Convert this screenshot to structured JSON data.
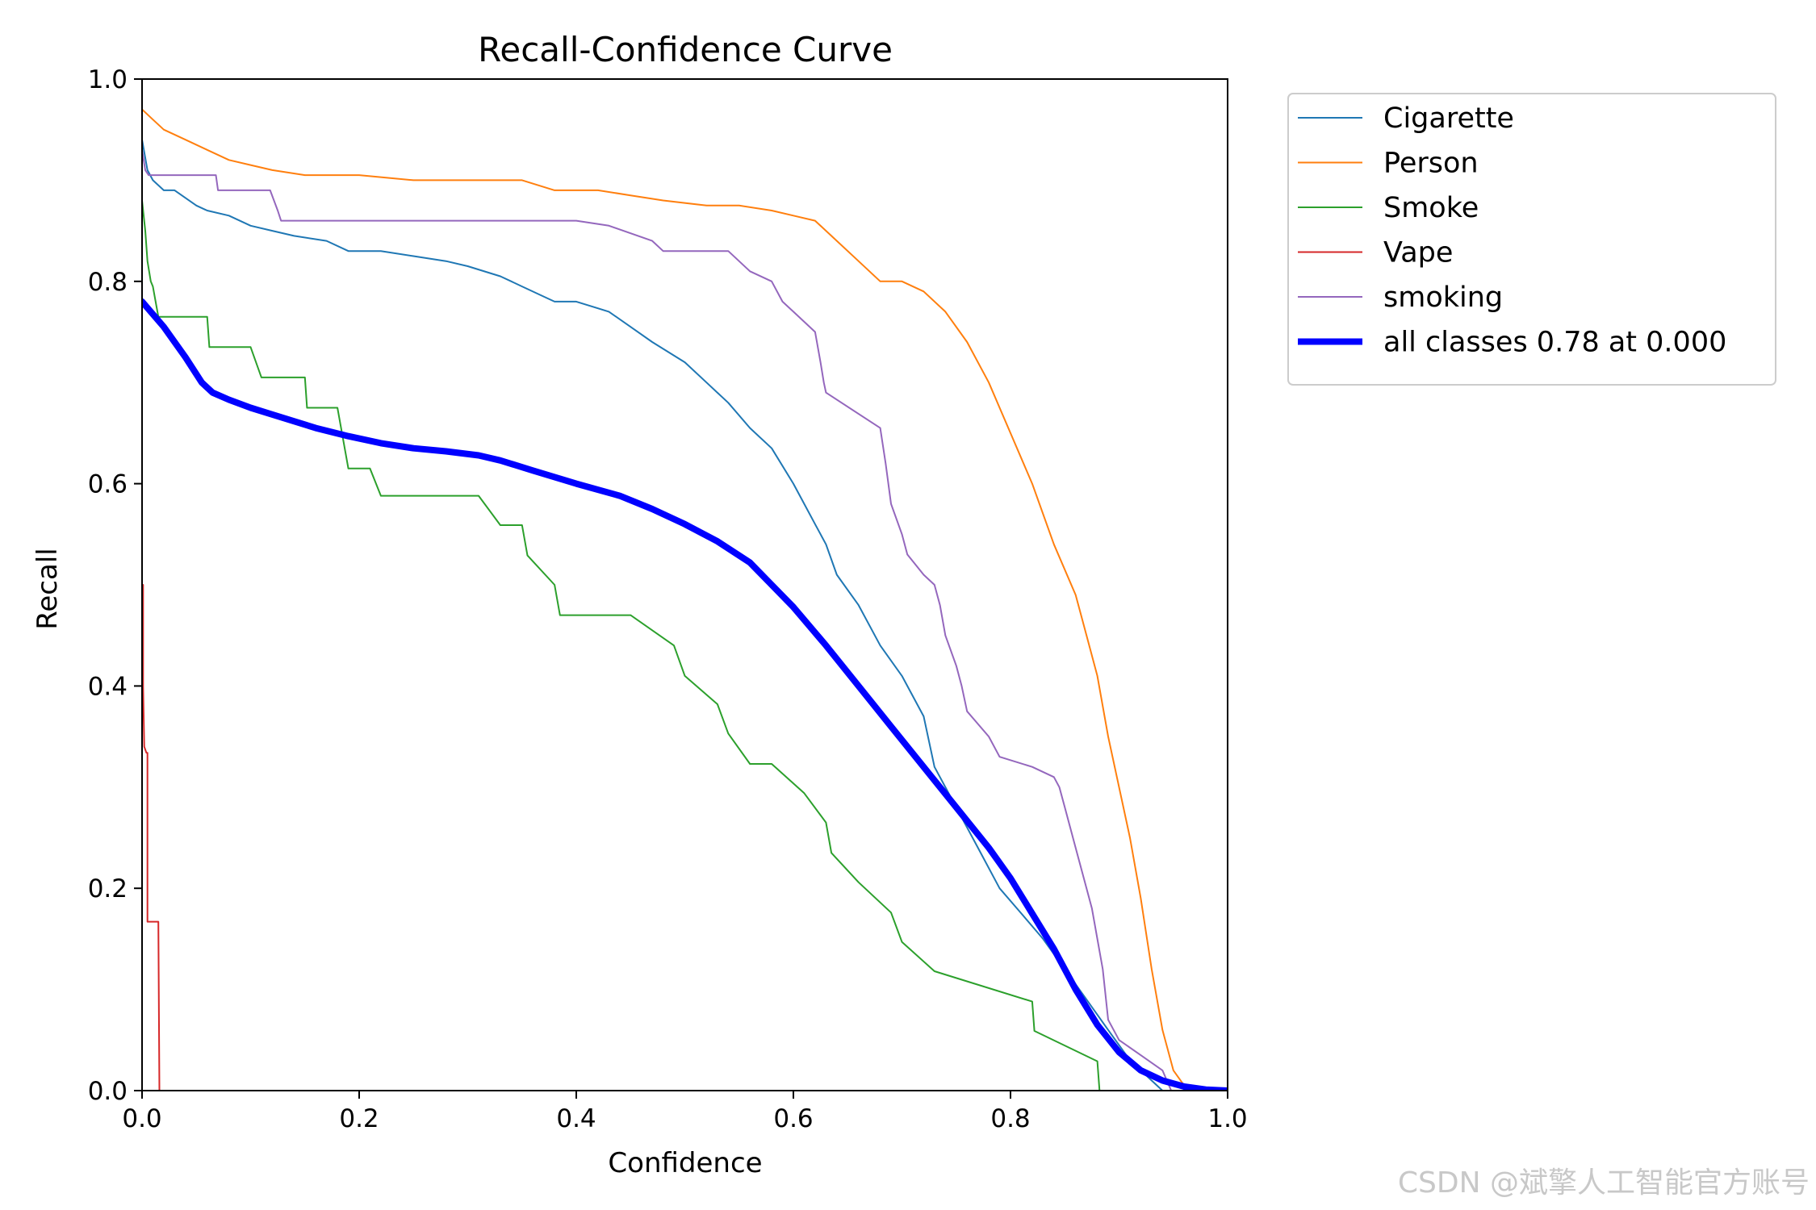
{
  "watermark": "CSDN @斌擎人工智能官方账号",
  "chart_data": {
    "type": "line",
    "title": "Recall-Confidence Curve",
    "xlabel": "Confidence",
    "ylabel": "Recall",
    "xlim": [
      0,
      1
    ],
    "ylim": [
      0,
      1
    ],
    "xticks": [
      "0.0",
      "0.2",
      "0.4",
      "0.6",
      "0.8",
      "1.0"
    ],
    "yticks": [
      "0.0",
      "0.2",
      "0.4",
      "0.6",
      "0.8",
      "1.0"
    ],
    "grid": false,
    "legend_position": "outside-top-right",
    "series": [
      {
        "name": "Cigarette",
        "color": "#1f77b4",
        "width": 2,
        "x": [
          0.0,
          0.005,
          0.01,
          0.02,
          0.03,
          0.05,
          0.06,
          0.08,
          0.1,
          0.12,
          0.14,
          0.17,
          0.19,
          0.22,
          0.25,
          0.28,
          0.3,
          0.33,
          0.35,
          0.37,
          0.38,
          0.4,
          0.43,
          0.45,
          0.47,
          0.5,
          0.52,
          0.54,
          0.56,
          0.58,
          0.6,
          0.62,
          0.63,
          0.64,
          0.66,
          0.68,
          0.7,
          0.72,
          0.73,
          0.75,
          0.77,
          0.79,
          0.81,
          0.83,
          0.85,
          0.87,
          0.89,
          0.91,
          0.93,
          0.94
        ],
        "y": [
          0.94,
          0.91,
          0.9,
          0.89,
          0.89,
          0.875,
          0.87,
          0.865,
          0.855,
          0.85,
          0.845,
          0.84,
          0.83,
          0.83,
          0.825,
          0.82,
          0.815,
          0.805,
          0.795,
          0.785,
          0.78,
          0.78,
          0.77,
          0.755,
          0.74,
          0.72,
          0.7,
          0.68,
          0.655,
          0.635,
          0.6,
          0.56,
          0.54,
          0.51,
          0.48,
          0.44,
          0.41,
          0.37,
          0.32,
          0.28,
          0.24,
          0.2,
          0.175,
          0.15,
          0.12,
          0.09,
          0.06,
          0.03,
          0.01,
          0.0
        ]
      },
      {
        "name": "Person",
        "color": "#ff7f0e",
        "width": 2,
        "x": [
          0.0,
          0.01,
          0.02,
          0.04,
          0.06,
          0.08,
          0.1,
          0.12,
          0.15,
          0.2,
          0.25,
          0.3,
          0.35,
          0.38,
          0.42,
          0.45,
          0.48,
          0.52,
          0.55,
          0.58,
          0.6,
          0.62,
          0.64,
          0.66,
          0.68,
          0.7,
          0.72,
          0.74,
          0.76,
          0.78,
          0.8,
          0.82,
          0.84,
          0.86,
          0.87,
          0.88,
          0.89,
          0.9,
          0.91,
          0.92,
          0.93,
          0.94,
          0.95,
          0.96,
          0.965,
          0.97
        ],
        "y": [
          0.97,
          0.96,
          0.95,
          0.94,
          0.93,
          0.92,
          0.915,
          0.91,
          0.905,
          0.905,
          0.9,
          0.9,
          0.9,
          0.89,
          0.89,
          0.885,
          0.88,
          0.875,
          0.875,
          0.87,
          0.865,
          0.86,
          0.84,
          0.82,
          0.8,
          0.8,
          0.79,
          0.77,
          0.74,
          0.7,
          0.65,
          0.6,
          0.54,
          0.49,
          0.45,
          0.41,
          0.35,
          0.3,
          0.25,
          0.19,
          0.12,
          0.06,
          0.02,
          0.005,
          0.0,
          0.0
        ]
      },
      {
        "name": "Smoke",
        "color": "#2ca02c",
        "width": 2,
        "x": [
          0.0,
          0.003,
          0.005,
          0.008,
          0.01,
          0.015,
          0.06,
          0.062,
          0.1,
          0.11,
          0.15,
          0.152,
          0.18,
          0.19,
          0.21,
          0.22,
          0.31,
          0.33,
          0.35,
          0.355,
          0.38,
          0.385,
          0.45,
          0.49,
          0.5,
          0.53,
          0.54,
          0.56,
          0.58,
          0.61,
          0.63,
          0.635,
          0.66,
          0.69,
          0.7,
          0.73,
          0.82,
          0.822,
          0.88,
          0.882
        ],
        "y": [
          0.88,
          0.85,
          0.82,
          0.8,
          0.795,
          0.765,
          0.765,
          0.735,
          0.735,
          0.705,
          0.705,
          0.675,
          0.675,
          0.615,
          0.615,
          0.588,
          0.588,
          0.559,
          0.559,
          0.529,
          0.5,
          0.47,
          0.47,
          0.44,
          0.41,
          0.382,
          0.353,
          0.323,
          0.323,
          0.294,
          0.265,
          0.235,
          0.206,
          0.176,
          0.147,
          0.118,
          0.088,
          0.059,
          0.029,
          0.0
        ]
      },
      {
        "name": "Vape",
        "color": "#d62728",
        "width": 2,
        "x": [
          0.001,
          0.001,
          0.002,
          0.004,
          0.005,
          0.005,
          0.015,
          0.016,
          0.05,
          1.0
        ],
        "y": [
          0.5,
          0.4,
          0.34,
          0.334,
          0.334,
          0.167,
          0.167,
          0.0,
          0.0,
          0.0
        ]
      },
      {
        "name": "smoking",
        "color": "#9467bd",
        "width": 2,
        "x": [
          0.0,
          0.003,
          0.006,
          0.01,
          0.05,
          0.068,
          0.07,
          0.118,
          0.125,
          0.128,
          0.15,
          0.2,
          0.3,
          0.4,
          0.43,
          0.47,
          0.48,
          0.54,
          0.56,
          0.58,
          0.59,
          0.6,
          0.62,
          0.625,
          0.628,
          0.63,
          0.68,
          0.685,
          0.69,
          0.7,
          0.705,
          0.72,
          0.73,
          0.735,
          0.74,
          0.75,
          0.755,
          0.76,
          0.78,
          0.79,
          0.82,
          0.84,
          0.845,
          0.85,
          0.86,
          0.87,
          0.875,
          0.88,
          0.885,
          0.89,
          0.9,
          0.92,
          0.94,
          0.948
        ],
        "y": [
          0.93,
          0.91,
          0.905,
          0.905,
          0.905,
          0.905,
          0.89,
          0.89,
          0.87,
          0.86,
          0.86,
          0.86,
          0.86,
          0.86,
          0.855,
          0.84,
          0.83,
          0.83,
          0.81,
          0.8,
          0.78,
          0.77,
          0.75,
          0.72,
          0.7,
          0.69,
          0.655,
          0.62,
          0.58,
          0.55,
          0.53,
          0.51,
          0.5,
          0.48,
          0.45,
          0.42,
          0.4,
          0.375,
          0.35,
          0.33,
          0.32,
          0.31,
          0.3,
          0.28,
          0.24,
          0.2,
          0.18,
          0.15,
          0.12,
          0.07,
          0.05,
          0.035,
          0.02,
          0.0
        ]
      },
      {
        "name": "all classes 0.78 at 0.000",
        "color": "#0000ff",
        "width": 8,
        "x": [
          0.0,
          0.02,
          0.04,
          0.055,
          0.065,
          0.08,
          0.1,
          0.13,
          0.16,
          0.19,
          0.22,
          0.25,
          0.28,
          0.31,
          0.33,
          0.36,
          0.4,
          0.44,
          0.47,
          0.5,
          0.53,
          0.56,
          0.58,
          0.6,
          0.63,
          0.66,
          0.69,
          0.72,
          0.75,
          0.78,
          0.8,
          0.82,
          0.84,
          0.86,
          0.88,
          0.9,
          0.92,
          0.94,
          0.96,
          0.98,
          1.0
        ],
        "y": [
          0.78,
          0.755,
          0.725,
          0.7,
          0.69,
          0.683,
          0.675,
          0.665,
          0.655,
          0.647,
          0.64,
          0.635,
          0.632,
          0.628,
          0.623,
          0.613,
          0.6,
          0.588,
          0.575,
          0.56,
          0.543,
          0.522,
          0.5,
          0.478,
          0.44,
          0.4,
          0.36,
          0.32,
          0.28,
          0.24,
          0.21,
          0.175,
          0.14,
          0.1,
          0.065,
          0.038,
          0.02,
          0.01,
          0.004,
          0.001,
          0.0
        ]
      }
    ]
  }
}
